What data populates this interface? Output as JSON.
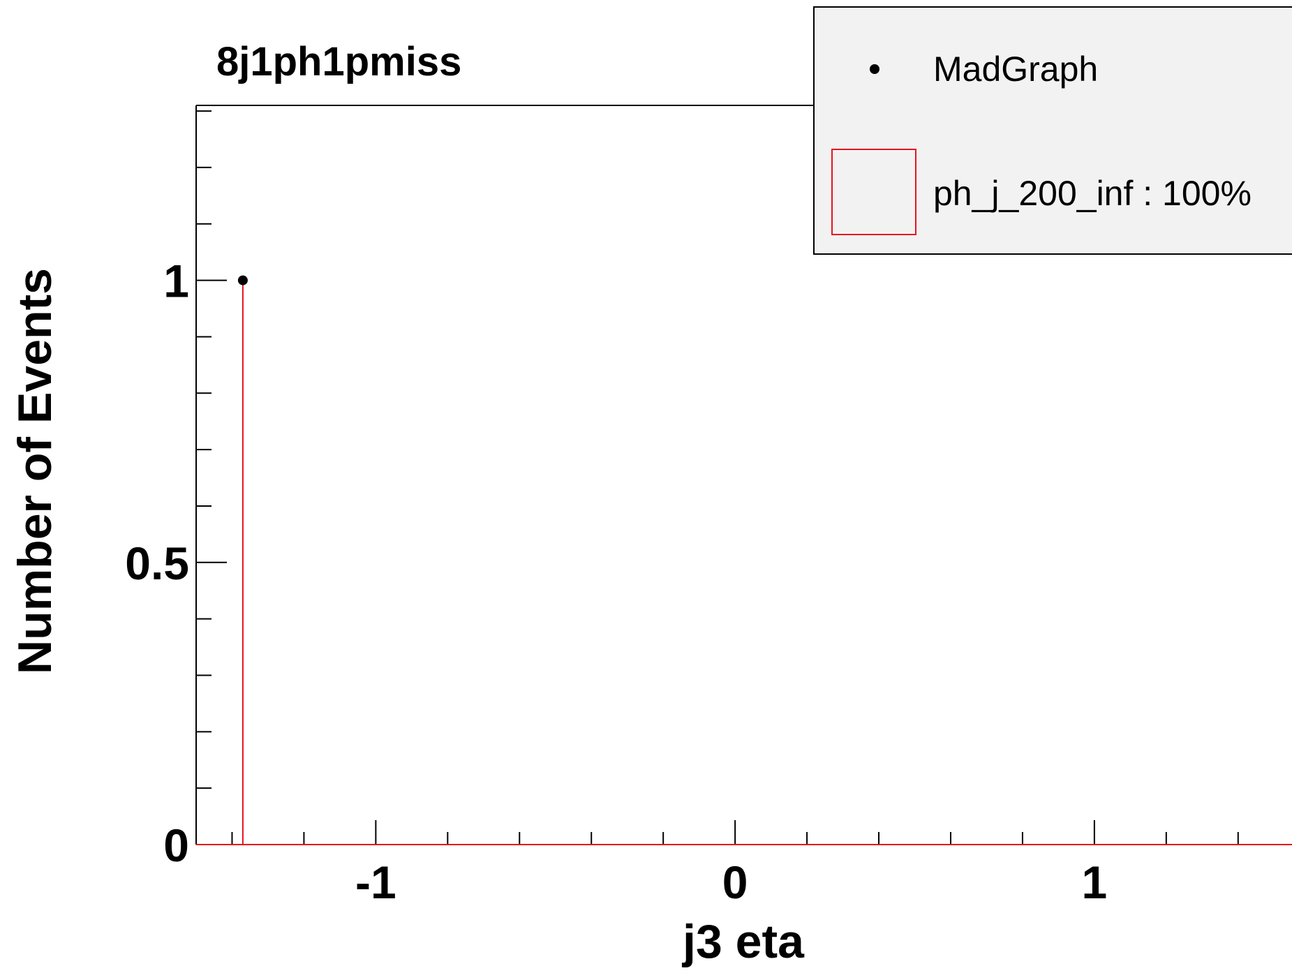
{
  "chart_data": {
    "type": "histogram",
    "title": "8j1ph1pmiss",
    "xlabel": "j3 eta",
    "ylabel": "Number of Events",
    "xlim": [
      -1.5,
      1.55
    ],
    "ylim": [
      0,
      1.31
    ],
    "x_major_ticks": [
      -1,
      0,
      1
    ],
    "x_tick_labels": [
      "-1",
      "0",
      "1"
    ],
    "x_minor_step": 0.2,
    "y_major_ticks": [
      0,
      0.5,
      1
    ],
    "y_tick_labels": [
      "0",
      "0.5",
      "1"
    ],
    "y_minor_step": 0.1,
    "grid": false,
    "legend_placement": "top-right",
    "series": [
      {
        "name": "MadGraph",
        "kind": "points",
        "color": "#000000",
        "points": [
          {
            "x": -1.37,
            "y": 1
          }
        ]
      },
      {
        "name": "ph_j_200_inf : 100%",
        "kind": "step",
        "color": "#e8141c",
        "bins": [
          {
            "x0": -1.5,
            "x1": -1.37,
            "y": 0
          },
          {
            "x0": -1.37,
            "x1": -1.37,
            "y": 1
          },
          {
            "x0": -1.37,
            "x1": 1.55,
            "y": 0
          }
        ]
      }
    ],
    "legend": [
      {
        "label": "MadGraph",
        "marker": "point",
        "color": "#000000"
      },
      {
        "label": "ph_j_200_inf : 100%",
        "marker": "box",
        "color": "#e8141c"
      }
    ]
  }
}
